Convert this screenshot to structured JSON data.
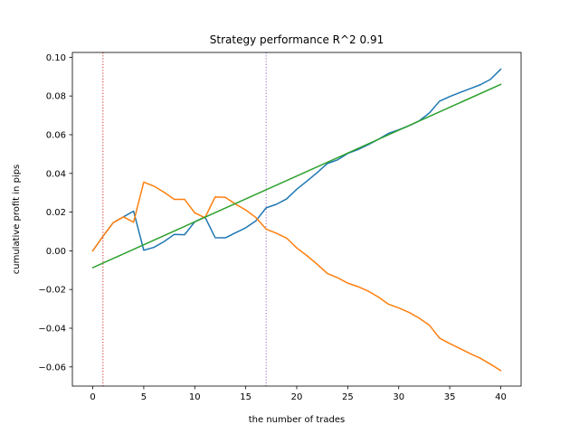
{
  "chart_data": {
    "type": "line",
    "title": "Strategy performance R^2 0.91",
    "xlabel": "the number of trades",
    "ylabel": "cumulative profit in pips",
    "xlim": [
      -2,
      42
    ],
    "ylim": [
      -0.0699,
      0.1025
    ],
    "xticks": [
      0,
      5,
      10,
      15,
      20,
      25,
      30,
      35,
      40
    ],
    "xtick_labels": [
      "0",
      "5",
      "10",
      "15",
      "20",
      "25",
      "30",
      "35",
      "40"
    ],
    "yticks": [
      -0.06,
      -0.04,
      -0.02,
      0.0,
      0.02,
      0.04,
      0.06,
      0.08,
      0.1
    ],
    "ytick_labels": [
      "−0.06",
      "−0.04",
      "−0.02",
      "0.00",
      "0.02",
      "0.04",
      "0.06",
      "0.08",
      "0.10"
    ],
    "grid": false,
    "series": [
      {
        "color": "#1f77b4",
        "x": [
          0,
          1,
          2,
          3,
          4,
          5,
          6,
          7,
          8,
          9,
          10,
          11,
          12,
          13,
          14,
          15,
          16,
          17,
          18,
          19,
          20,
          21,
          22,
          23,
          24,
          25,
          26,
          27,
          28,
          29,
          30,
          31,
          32,
          33,
          34,
          35,
          36,
          37,
          38,
          39,
          40
        ],
        "y": [
          0.0,
          0.0075,
          0.0145,
          0.0175,
          0.0205,
          0.0003,
          0.0018,
          0.0048,
          0.0085,
          0.0083,
          0.015,
          0.0175,
          0.0068,
          0.0067,
          0.0093,
          0.0119,
          0.0155,
          0.0222,
          0.024,
          0.0268,
          0.0318,
          0.036,
          0.0404,
          0.0451,
          0.047,
          0.0503,
          0.0523,
          0.0548,
          0.0576,
          0.0607,
          0.0625,
          0.0646,
          0.0671,
          0.0712,
          0.0773,
          0.0797,
          0.0818,
          0.0838,
          0.0858,
          0.0886,
          0.0938
        ]
      },
      {
        "color": "#ff7f0e",
        "x": [
          0,
          1,
          2,
          3,
          4,
          5,
          6,
          7,
          8,
          9,
          10,
          11,
          12,
          13,
          14,
          15,
          16,
          17,
          18,
          19,
          20,
          21,
          22,
          23,
          24,
          25,
          26,
          27,
          28,
          29,
          30,
          31,
          32,
          33,
          34,
          35,
          36,
          37,
          38,
          39,
          40
        ],
        "y": [
          0.0,
          0.0075,
          0.0145,
          0.0175,
          0.0148,
          0.0355,
          0.0334,
          0.0302,
          0.0266,
          0.0266,
          0.0196,
          0.0171,
          0.0278,
          0.0276,
          0.0241,
          0.0211,
          0.0172,
          0.0112,
          0.0091,
          0.0066,
          0.0015,
          -0.0025,
          -0.0069,
          -0.0117,
          -0.0139,
          -0.0167,
          -0.0185,
          -0.0208,
          -0.0239,
          -0.0276,
          -0.0295,
          -0.0318,
          -0.0348,
          -0.0384,
          -0.0451,
          -0.0479,
          -0.0505,
          -0.0531,
          -0.0555,
          -0.0586,
          -0.0619
        ]
      },
      {
        "color": "#2ca02c",
        "x": [
          0,
          40
        ],
        "y": [
          -0.0087,
          0.086
        ]
      }
    ],
    "vlines": [
      {
        "x": 1,
        "color": "#d62728",
        "style": "dotted"
      },
      {
        "x": 17,
        "color": "#9467bd",
        "style": "dotted"
      }
    ]
  }
}
